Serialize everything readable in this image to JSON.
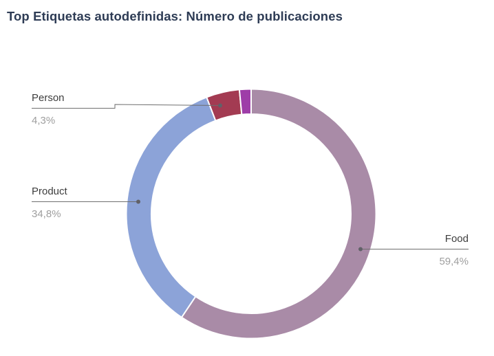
{
  "header": {
    "title": "Top Etiquetas autodefinidas: Número de publicaciones",
    "title_color": "#2e3c55"
  },
  "chart_data": {
    "type": "pie",
    "subtype": "donut",
    "title": "Top Etiquetas autodefinidas: Número de publicaciones",
    "unit": "percent",
    "start_angle_deg": 0,
    "direction": "clockwise",
    "legend": "none",
    "slices": [
      {
        "label": "Food",
        "value": 59.4,
        "percent_label": "59,4%",
        "color": "#A98BA7",
        "label_visible": true
      },
      {
        "label": "Product",
        "value": 34.8,
        "percent_label": "34,8%",
        "color": "#8CA3D8",
        "label_visible": true
      },
      {
        "label": "Person",
        "value": 4.3,
        "percent_label": "4,3%",
        "color": "#A33B52",
        "label_visible": true
      },
      {
        "label": "",
        "value": 1.5,
        "percent_label": "",
        "color": "#9E3DA8",
        "label_visible": false
      }
    ],
    "colors": {
      "label_text": "#3d3d3d",
      "percent_text": "#9e9e9e",
      "leader_line": "#6e6e6e",
      "slice_gap": "#ffffff"
    }
  }
}
